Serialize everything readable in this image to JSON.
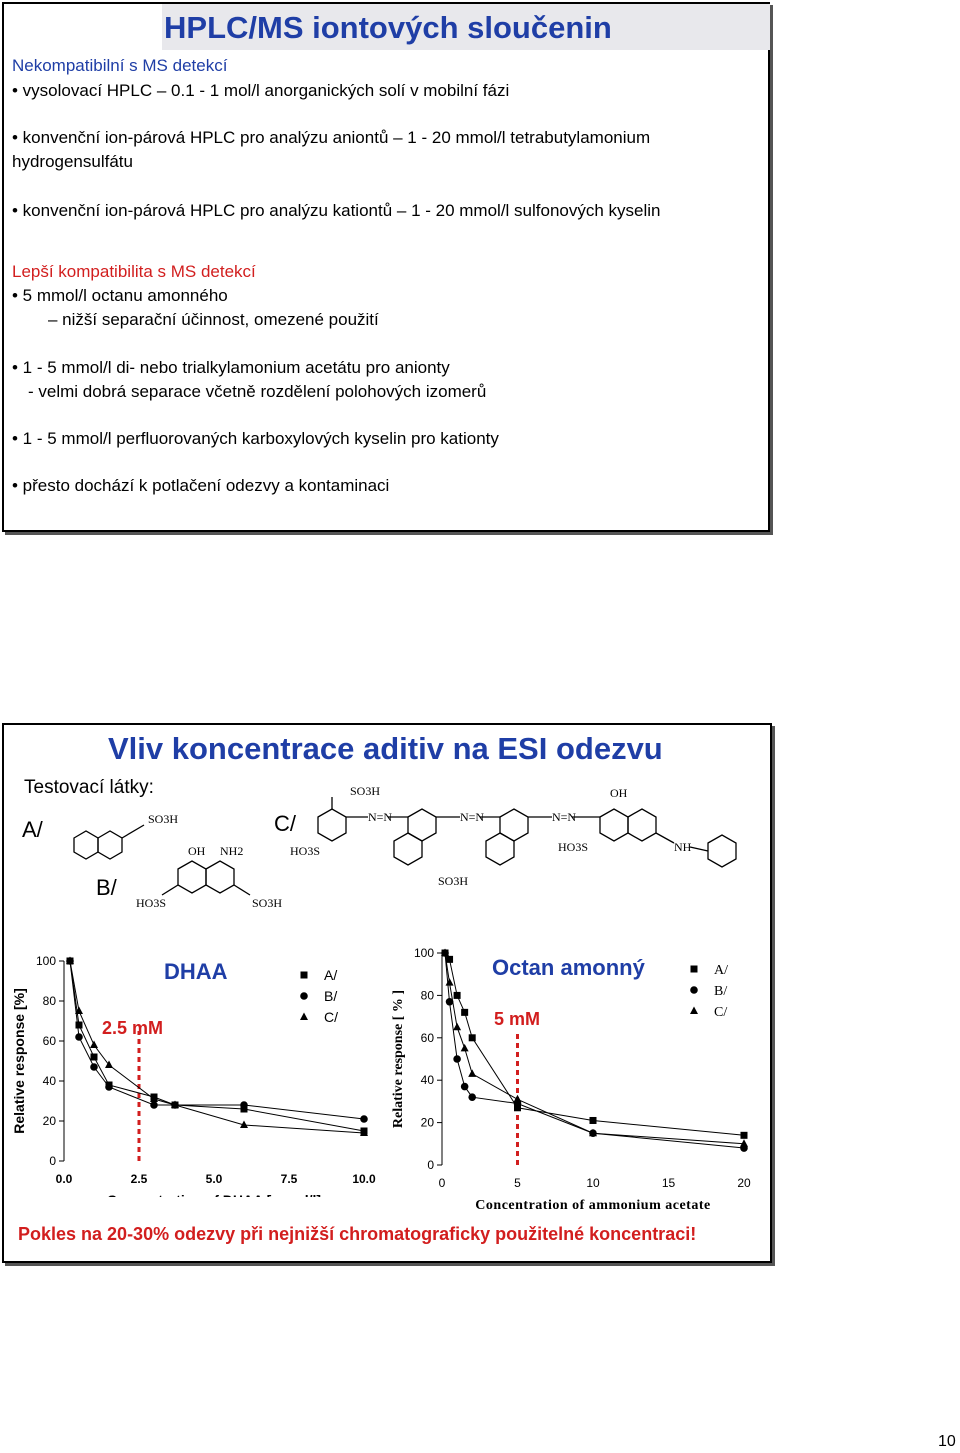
{
  "slide1": {
    "title": "HPLC/MS iontových sloučenin",
    "section1": "Nekompatibilní s MS detekcí",
    "b1": "• vysolovací HPLC – 0.1 - 1 mol/l anorganických solí v mobilní fázi",
    "b2a": "• konvenční ion-párová HPLC pro analýzu aniontů – 1 - 20 mmol/l tetrabutylamonium",
    "b2b": "hydrogensulfátu",
    "b3": "• konvenční ion-párová HPLC pro analýzu kationtů – 1 - 20 mmol/l sulfonových kyselin",
    "section2": "Lepší kompatibilita s MS detekcí",
    "b4": "• 5 mmol/l octanu amonného",
    "b4sub": "– nižší separační účinnost, omezené použití",
    "b5": "• 1 - 5 mmol/l di- nebo trialkylamonium acetátu pro anionty",
    "b5sub": "- velmi dobrá separace včetně rozdělení polohových izomerů",
    "b6": "• 1 - 5 mmol/l perfluorovaných karboxylových kyselin pro kationty",
    "b7": "• přesto dochází k potlačení odezvy a kontaminaci"
  },
  "slide2": {
    "title": "Vliv koncentrace aditiv na ESI odezvu",
    "test_label": "Testovací látky:",
    "a_label": "A/",
    "b_label": "B/",
    "c_label": "C/",
    "chem": {
      "so3h": "SO3H",
      "ho3s": "HO3S",
      "oh": "OH",
      "nh2": "NH2",
      "nh": "NH",
      "azo": "N=N"
    },
    "conclusion": "Pokles na 20-30% odezvy při nejnižší chromatograficky použitelné koncentraci!"
  },
  "chart_data": [
    {
      "type": "scatter",
      "title": "DHAA",
      "xlabel": "Concentration of DHAA [mmol/l]",
      "ylabel": "Relative response [%]",
      "xlim": [
        0,
        10
      ],
      "ylim": [
        0,
        100
      ],
      "xticks": [
        "0.0",
        "2.5",
        "5.0",
        "7.5",
        "10.0"
      ],
      "yticks": [
        "0",
        "20",
        "40",
        "60",
        "80",
        "100"
      ],
      "annotation": "2.5 mM",
      "annotation_x": 2.5,
      "legend": [
        "A/",
        "B/",
        "C/"
      ],
      "series": [
        {
          "name": "A/",
          "marker": "square",
          "x": [
            0.2,
            0.5,
            1,
            1.5,
            3,
            3.7,
            6,
            10
          ],
          "y": [
            100,
            68,
            52,
            38,
            32,
            28,
            26,
            15
          ]
        },
        {
          "name": "B/",
          "marker": "circle",
          "x": [
            0.2,
            0.5,
            1,
            1.5,
            3,
            3.7,
            6,
            10
          ],
          "y": [
            100,
            62,
            47,
            37,
            28,
            28,
            28,
            21
          ]
        },
        {
          "name": "C/",
          "marker": "triangle",
          "x": [
            0.2,
            0.5,
            1,
            1.5,
            3,
            3.7,
            6,
            10
          ],
          "y": [
            100,
            75,
            58,
            48,
            31,
            28,
            18,
            14
          ]
        }
      ]
    },
    {
      "type": "scatter",
      "title": "Octan amonný",
      "xlabel": "Concentration of ammonium acetate [mmol/l]",
      "ylabel": "Relative response [ % ]",
      "xlim": [
        0,
        20
      ],
      "ylim": [
        0,
        100
      ],
      "xticks": [
        "0",
        "5",
        "10",
        "15",
        "20"
      ],
      "yticks": [
        "0",
        "20",
        "40",
        "60",
        "80",
        "100"
      ],
      "annotation": "5 mM",
      "annotation_x": 5,
      "legend": [
        "A/",
        "B/",
        "C/"
      ],
      "series": [
        {
          "name": "A/",
          "marker": "square",
          "x": [
            0.2,
            0.5,
            1,
            1.5,
            2,
            5,
            10,
            20
          ],
          "y": [
            100,
            97,
            80,
            72,
            60,
            27,
            21,
            14
          ]
        },
        {
          "name": "B/",
          "marker": "circle",
          "x": [
            0.2,
            0.5,
            1,
            1.5,
            2,
            5,
            10,
            20
          ],
          "y": [
            100,
            77,
            50,
            37,
            32,
            29,
            15,
            8
          ]
        },
        {
          "name": "C/",
          "marker": "triangle",
          "x": [
            0.2,
            0.5,
            1,
            1.5,
            2,
            5,
            10,
            20
          ],
          "y": [
            100,
            86,
            65,
            55,
            43,
            31,
            15,
            10
          ]
        }
      ]
    }
  ],
  "page_number": "10"
}
